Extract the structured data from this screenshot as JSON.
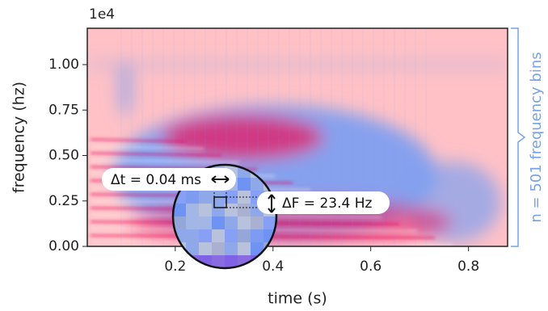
{
  "chart_data": {
    "type": "spectrogram",
    "xlabel": "time (s)",
    "ylabel": "frequency (hz)",
    "y_offset_label": "1e4",
    "xlim": [
      0.02,
      0.88
    ],
    "xticks": [
      0.2,
      0.4,
      0.6,
      0.8
    ],
    "ylim": [
      0,
      1.2
    ],
    "yticks": [
      {
        "value": 0,
        "label": "0.00"
      },
      0.25,
      {
        "value": 0.5,
        "label": "0.50"
      },
      0.75,
      {
        "value": 1,
        "label": "1.00"
      }
    ],
    "colormap": [
      "#ffc1c6",
      "#7f9ff0",
      "#ea1560"
    ],
    "annotations": {
      "dt": "Δt = 0.04 ms",
      "df": "ΔF = 23.4 Hz",
      "bins": "n = 501 frequency bins"
    },
    "bracket_color": "#7aa3e5"
  }
}
